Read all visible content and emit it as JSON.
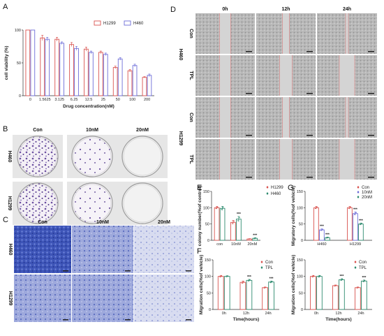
{
  "figure": {
    "panels": [
      "A",
      "B",
      "C",
      "D",
      "E",
      "F",
      "G"
    ]
  },
  "colors": {
    "red": "#d9534f",
    "blue": "#6c6cd8",
    "green": "#2e8b6f",
    "dark": "#444444"
  },
  "chart_data": [
    {
      "id": "A",
      "type": "bar",
      "title": "",
      "xlabel": "Drug concentration(nM)",
      "ylabel": "cell viability (%)",
      "ylim": [
        0,
        100
      ],
      "yticks": [
        "0",
        "50",
        "100"
      ],
      "categories": [
        "0",
        "1.5625",
        "3.125",
        "6.25",
        "12.5",
        "25",
        "50",
        "100",
        "200"
      ],
      "series": [
        {
          "name": "H1299",
          "values": [
            100,
            88,
            86,
            78,
            71,
            66,
            43,
            38,
            28
          ],
          "errors": [
            0,
            4,
            3,
            3,
            3,
            2,
            2,
            2,
            1
          ]
        },
        {
          "name": "H460",
          "values": [
            100,
            86,
            80,
            72,
            66,
            63,
            56,
            46,
            31
          ],
          "errors": [
            0,
            3,
            2,
            3,
            2,
            2,
            2,
            2,
            2
          ]
        }
      ],
      "legend": "top-right"
    },
    {
      "id": "E",
      "type": "bar",
      "ylabel": "colony number(%of control)",
      "ylim": [
        0,
        150
      ],
      "yticks": [
        "0",
        "50",
        "100",
        "150"
      ],
      "categories": [
        "con",
        "10nM",
        "20nM"
      ],
      "series": [
        {
          "name": "H1299",
          "values": [
            100,
            55,
            4
          ],
          "errors": [
            4,
            6,
            1
          ]
        },
        {
          "name": "H460",
          "values": [
            98,
            65,
            6
          ],
          "errors": [
            6,
            8,
            2
          ]
        }
      ],
      "annotations": [
        "",
        "***",
        "***"
      ],
      "legend": "top-right"
    },
    {
      "id": "G",
      "type": "bar",
      "ylabel": "Migratory cells(%of vehicle)",
      "ylim": [
        0,
        150
      ],
      "yticks": [
        "0",
        "50",
        "100",
        "150"
      ],
      "categories": [
        "H460",
        "H1299"
      ],
      "series": [
        {
          "name": "Con",
          "values": [
            100,
            100
          ],
          "errors": [
            4,
            4
          ]
        },
        {
          "name": "10nM",
          "values": [
            32,
            82
          ],
          "errors": [
            3,
            5
          ]
        },
        {
          "name": "20nM",
          "values": [
            8,
            50
          ],
          "errors": [
            2,
            3
          ]
        }
      ],
      "annotations": [
        "***",
        "***"
      ],
      "legend": "top-right"
    },
    {
      "id": "F1",
      "type": "bar",
      "ylabel": "Migration cells(%of vehicle)",
      "xlabel": "Time(hours)",
      "ylim": [
        0,
        150
      ],
      "yticks": [
        "0",
        "50",
        "100",
        "150"
      ],
      "categories": [
        "0h",
        "12h",
        "24h"
      ],
      "series": [
        {
          "name": "Con",
          "values": [
            100,
            82,
            66
          ],
          "errors": [
            3,
            4,
            2
          ]
        },
        {
          "name": "TPL",
          "values": [
            100,
            88,
            83
          ],
          "errors": [
            2,
            3,
            3
          ]
        }
      ],
      "annotations": [
        "",
        "***",
        "***"
      ],
      "legend": "top-right"
    },
    {
      "id": "F2",
      "type": "bar",
      "ylabel": "Migration cells(%of vehicle)",
      "xlabel": "Time(hours)",
      "ylim": [
        0,
        150
      ],
      "yticks": [
        "0",
        "50",
        "100",
        "150"
      ],
      "categories": [
        "0h",
        "12h",
        "24h"
      ],
      "series": [
        {
          "name": "Con",
          "values": [
            100,
            72,
            66
          ],
          "errors": [
            3,
            2,
            2
          ]
        },
        {
          "name": "TPL",
          "values": [
            100,
            90,
            86
          ],
          "errors": [
            3,
            3,
            3
          ]
        }
      ],
      "annotations": [
        "",
        "***",
        "***"
      ],
      "legend": "top-right"
    }
  ],
  "panelB": {
    "cols": [
      "Con",
      "10nM",
      "20nM"
    ],
    "rows": [
      "H460",
      "H1299"
    ]
  },
  "panelC": {
    "cols": [
      "Con",
      "10nM",
      "20nM"
    ],
    "rows": [
      "H460",
      "H1299"
    ]
  },
  "panelD": {
    "cols": [
      "0h",
      "12h",
      "24h"
    ],
    "groups": [
      "H460",
      "H1299"
    ],
    "rows": [
      "Con",
      "TPL",
      "Con",
      "TPL"
    ]
  }
}
